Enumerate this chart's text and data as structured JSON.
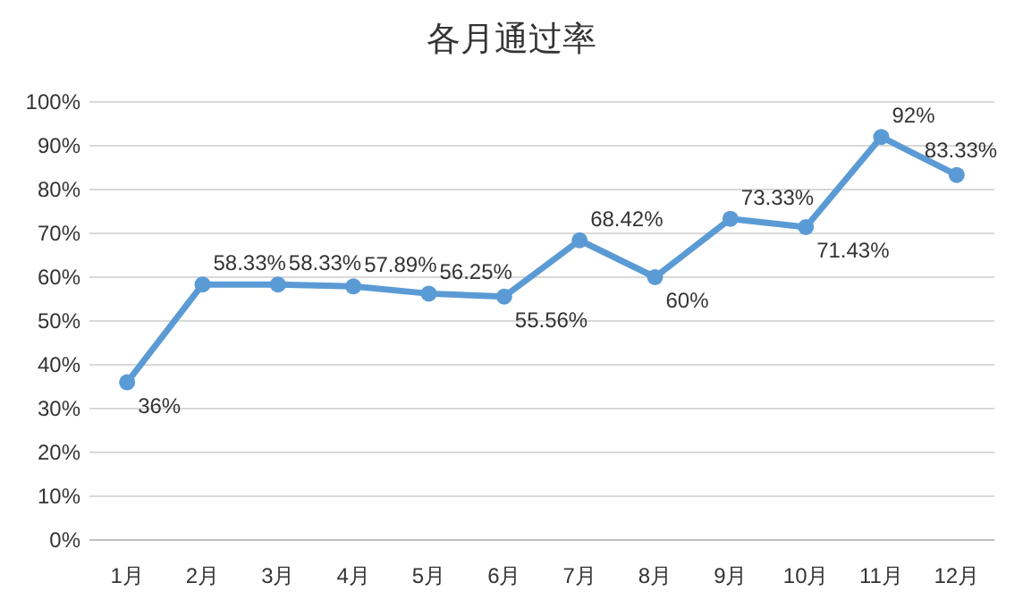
{
  "chart_data": {
    "type": "line",
    "title": "各月通过率",
    "categories": [
      "1月",
      "2月",
      "3月",
      "4月",
      "5月",
      "6月",
      "7月",
      "8月",
      "9月",
      "10月",
      "11月",
      "12月"
    ],
    "series": [
      {
        "color": "#5b9bd5",
        "values": [
          36,
          58.33,
          58.33,
          57.89,
          56.25,
          55.56,
          68.42,
          60,
          73.33,
          71.43,
          92,
          83.33
        ],
        "value_labels": [
          "36%",
          "58.33%",
          "58.33%",
          "57.89%",
          "56.25%",
          "55.56%",
          "68.42%",
          "60%",
          "73.33%",
          "71.43%",
          "92%",
          "83.33%"
        ]
      }
    ],
    "ylim": [
      0,
      100
    ],
    "yticks": [
      {
        "value": 0,
        "label": "0%"
      },
      {
        "value": 10,
        "label": "10%"
      },
      {
        "value": 20,
        "label": "20%"
      },
      {
        "value": 30,
        "label": "30%"
      },
      {
        "value": 40,
        "label": "40%"
      },
      {
        "value": 50,
        "label": "50%"
      },
      {
        "value": 60,
        "label": "60%"
      },
      {
        "value": 70,
        "label": "70%"
      },
      {
        "value": 80,
        "label": "80%"
      },
      {
        "value": 90,
        "label": "90%"
      },
      {
        "value": 100,
        "label": "100%"
      }
    ],
    "grid": "y",
    "marker": "circle",
    "line_style": "solid"
  }
}
